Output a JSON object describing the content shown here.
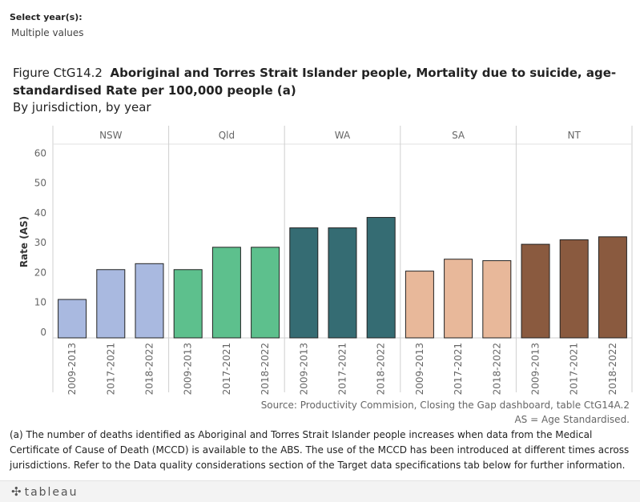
{
  "filter": {
    "label": "Select year(s):",
    "value": "Multiple values"
  },
  "title": {
    "figure": "Figure CtG14.2",
    "main": "Aboriginal and Torres Strait Islander people, Mortality due to suicide, age-standardised Rate per 100,000 people (a)",
    "subtitle": "By jurisdiction, by year"
  },
  "chart_data": {
    "type": "bar",
    "ylabel": "Rate (AS)",
    "ylim": [
      0,
      62
    ],
    "yticks": [
      0,
      10,
      20,
      30,
      40,
      50,
      60
    ],
    "panels": [
      {
        "name": "NSW",
        "color": "#a9b9e0",
        "categories": [
          "2009-2013",
          "2017-2021",
          "2018-2022"
        ],
        "values": [
          11,
          21,
          23
        ]
      },
      {
        "name": "Qld",
        "color": "#5dc08d",
        "categories": [
          "2009-2013",
          "2017-2021",
          "2018-2022"
        ],
        "values": [
          21,
          28.5,
          28.5
        ]
      },
      {
        "name": "WA",
        "color": "#356c73",
        "categories": [
          "2009-2013",
          "2017-2021",
          "2018-2022"
        ],
        "values": [
          35,
          35,
          38.5
        ]
      },
      {
        "name": "SA",
        "color": "#e8b89a",
        "categories": [
          "2009-2013",
          "2017-2021",
          "2018-2022"
        ],
        "values": [
          20.5,
          24.5,
          24
        ]
      },
      {
        "name": "NT",
        "color": "#8a5a3f",
        "categories": [
          "2009-2013",
          "2017-2021",
          "2018-2022"
        ],
        "values": [
          29.5,
          31,
          32
        ]
      }
    ],
    "grid": false
  },
  "source": "Source: Productivity Commision, Closing the Gap dashboard, table CtG14A.2",
  "as_note": "AS = Age Standardised.",
  "footnote": "(a) The number of deaths identified as Aboriginal and Torres Strait Islander people increases when data from the Medical Certificate of Cause of Death (MCCD) is available to the ABS. The use of the MCCD has been introduced at different times across jurisdictions. Refer to the Data quality considerations section of the Target data specifications tab below for further information.",
  "toolbar": {
    "logo": "tableau"
  }
}
